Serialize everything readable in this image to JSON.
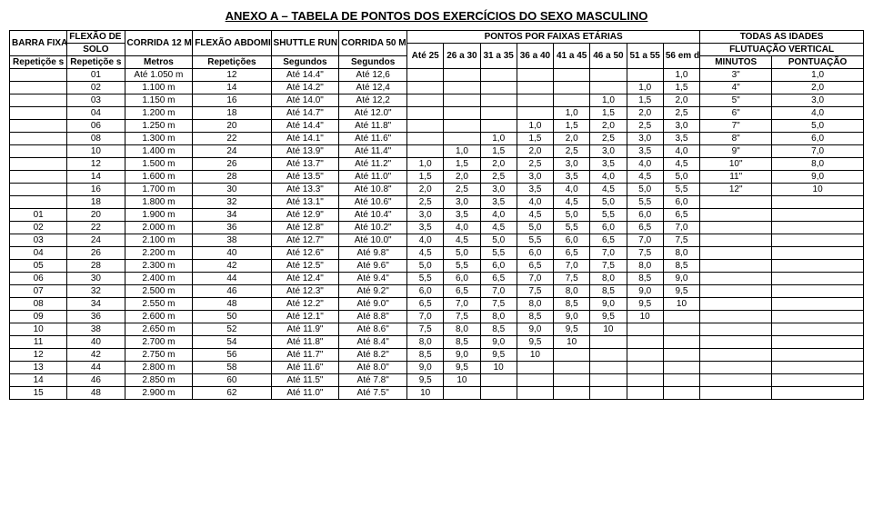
{
  "title": "ANEXO A – TABELA DE PONTOS DOS EXERCÍCIOS DO SEXO MASCULINO",
  "headers": {
    "barra_fixa": "BARRA FIXA",
    "flexao_bracos": "FLEXÃO DE BRAÇOS",
    "solo": "SOLO",
    "corrida12": "CORRIDA 12 MIN",
    "flexao_abd": "FLEXÃO ABDOMINAL",
    "shuttle": "SHUTTLE RUN",
    "corrida50": "CORRIDA 50 METROS",
    "pontos_faixa": "PONTOS POR FAIXAS ETÁRIAS",
    "todas_idades": "TODAS AS IDADES",
    "flutuacao": "FLUTUAÇÃO VERTICAL",
    "rep": "Repetiçõe s",
    "metros": "Metros",
    "repeticoes": "Repetições",
    "segundos": "Segundos",
    "ate25": "Até 25",
    "a26": "26 a 30",
    "a31": "31 a 35",
    "a36": "36 a 40",
    "a41": "41 a 45",
    "a46": "46 a 50",
    "a51": "51 a 55",
    "a56": "56 em diant e",
    "minutos": "MINUTOS",
    "pontuacao": "PONTUAÇÃO"
  },
  "rows": [
    [
      "",
      "01",
      "Até 1.050 m",
      "12",
      "Até 14.4\"",
      "Até 12,6",
      "",
      "",
      "",
      "",
      "",
      "",
      "",
      "1,0",
      "3\"",
      "1,0"
    ],
    [
      "",
      "02",
      "1.100 m",
      "14",
      "Até 14.2\"",
      "Até 12,4",
      "",
      "",
      "",
      "",
      "",
      "",
      "1,0",
      "1,5",
      "4\"",
      "2,0"
    ],
    [
      "",
      "03",
      "1.150 m",
      "16",
      "Até 14.0\"",
      "Até 12,2",
      "",
      "",
      "",
      "",
      "",
      "1,0",
      "1,5",
      "2,0",
      "5\"",
      "3,0"
    ],
    [
      "",
      "04",
      "1.200 m",
      "18",
      "Até 14.7\"",
      "Até 12.0\"",
      "",
      "",
      "",
      "",
      "1,0",
      "1,5",
      "2,0",
      "2,5",
      "6\"",
      "4,0"
    ],
    [
      "",
      "06",
      "1.250 m",
      "20",
      "Até 14.4\"",
      "Até 11.8\"",
      "",
      "",
      "",
      "1,0",
      "1,5",
      "2,0",
      "2,5",
      "3,0",
      "7\"",
      "5,0"
    ],
    [
      "",
      "08",
      "1.300 m",
      "22",
      "Até 14.1\"",
      "Até 11.6\"",
      "",
      "",
      "1,0",
      "1,5",
      "2,0",
      "2,5",
      "3,0",
      "3,5",
      "8\"",
      "6,0"
    ],
    [
      "",
      "10",
      "1.400 m",
      "24",
      "Até 13.9\"",
      "Até 11.4\"",
      "",
      "1,0",
      "1,5",
      "2,0",
      "2,5",
      "3,0",
      "3,5",
      "4,0",
      "9\"",
      "7,0"
    ],
    [
      "",
      "12",
      "1.500 m",
      "26",
      "Até 13.7\"",
      "Até 11.2\"",
      "1,0",
      "1,5",
      "2,0",
      "2,5",
      "3,0",
      "3,5",
      "4,0",
      "4,5",
      "10\"",
      "8,0"
    ],
    [
      "",
      "14",
      "1.600 m",
      "28",
      "Até 13.5\"",
      "Até 11.0\"",
      "1,5",
      "2,0",
      "2,5",
      "3,0",
      "3,5",
      "4,0",
      "4,5",
      "5,0",
      "11\"",
      "9,0"
    ],
    [
      "",
      "16",
      "1.700 m",
      "30",
      "Até 13.3\"",
      "Até 10.8\"",
      "2,0",
      "2,5",
      "3,0",
      "3,5",
      "4,0",
      "4,5",
      "5,0",
      "5,5",
      "12\"",
      "10"
    ],
    [
      "",
      "18",
      "1.800 m",
      "32",
      "Até 13.1\"",
      "Até 10.6\"",
      "2,5",
      "3,0",
      "3,5",
      "4,0",
      "4,5",
      "5,0",
      "5,5",
      "6,0",
      "",
      ""
    ],
    [
      "01",
      "20",
      "1.900 m",
      "34",
      "Até 12.9\"",
      "Até 10.4\"",
      "3,0",
      "3,5",
      "4,0",
      "4,5",
      "5,0",
      "5,5",
      "6,0",
      "6,5",
      "",
      ""
    ],
    [
      "02",
      "22",
      "2.000 m",
      "36",
      "Até 12.8\"",
      "Até 10.2\"",
      "3,5",
      "4,0",
      "4,5",
      "5,0",
      "5,5",
      "6,0",
      "6,5",
      "7,0",
      "",
      ""
    ],
    [
      "03",
      "24",
      "2.100 m",
      "38",
      "Até 12.7\"",
      "Até 10.0\"",
      "4,0",
      "4,5",
      "5,0",
      "5,5",
      "6,0",
      "6,5",
      "7,0",
      "7,5",
      "",
      ""
    ],
    [
      "04",
      "26",
      "2.200 m",
      "40",
      "Até 12.6\"",
      "Até 9.8\"",
      "4,5",
      "5,0",
      "5,5",
      "6,0",
      "6,5",
      "7,0",
      "7,5",
      "8,0",
      "",
      ""
    ],
    [
      "05",
      "28",
      "2.300 m",
      "42",
      "Até 12.5\"",
      "Até 9.6\"",
      "5,0",
      "5,5",
      "6,0",
      "6,5",
      "7,0",
      "7,5",
      "8,0",
      "8,5",
      "",
      ""
    ],
    [
      "06",
      "30",
      "2.400 m",
      "44",
      "Até 12.4\"",
      "Até 9.4\"",
      "5,5",
      "6,0",
      "6,5",
      "7,0",
      "7,5",
      "8,0",
      "8,5",
      "9,0",
      "",
      ""
    ],
    [
      "07",
      "32",
      "2.500 m",
      "46",
      "Até 12.3\"",
      "Até 9.2\"",
      "6,0",
      "6,5",
      "7,0",
      "7,5",
      "8,0",
      "8,5",
      "9,0",
      "9,5",
      "",
      ""
    ],
    [
      "08",
      "34",
      "2.550 m",
      "48",
      "Até 12.2\"",
      "Até 9.0\"",
      "6,5",
      "7,0",
      "7,5",
      "8,0",
      "8,5",
      "9,0",
      "9,5",
      "10",
      "",
      ""
    ],
    [
      "09",
      "36",
      "2.600 m",
      "50",
      "Até 12.1\"",
      "Até 8.8\"",
      "7,0",
      "7,5",
      "8,0",
      "8,5",
      "9,0",
      "9,5",
      "10",
      "",
      "",
      ""
    ],
    [
      "10",
      "38",
      "2.650 m",
      "52",
      "Até 11.9\"",
      "Até 8.6\"",
      "7,5",
      "8,0",
      "8,5",
      "9,0",
      "9,5",
      "10",
      "",
      "",
      "",
      ""
    ],
    [
      "11",
      "40",
      "2.700 m",
      "54",
      "Até 11.8\"",
      "Até 8.4\"",
      "8,0",
      "8,5",
      "9,0",
      "9,5",
      "10",
      "",
      "",
      "",
      "",
      ""
    ],
    [
      "12",
      "42",
      "2.750 m",
      "56",
      "Até 11.7\"",
      "Até 8.2\"",
      "8,5",
      "9,0",
      "9,5",
      "10",
      "",
      "",
      "",
      "",
      "",
      ""
    ],
    [
      "13",
      "44",
      "2.800 m",
      "58",
      "Até 11.6\"",
      "Até 8.0\"",
      "9,0",
      "9,5",
      "10",
      "",
      "",
      "",
      "",
      "",
      "",
      ""
    ],
    [
      "14",
      "46",
      "2.850 m",
      "60",
      "Até 11.5\"",
      "Até 7.8\"",
      "9,5",
      "10",
      "",
      "",
      "",
      "",
      "",
      "",
      "",
      ""
    ],
    [
      "15",
      "48",
      "2.900 m",
      "62",
      "Até 11.0\"",
      "Até 7.5\"",
      "10",
      "",
      "",
      "",
      "",
      "",
      "",
      "",
      "",
      ""
    ]
  ]
}
